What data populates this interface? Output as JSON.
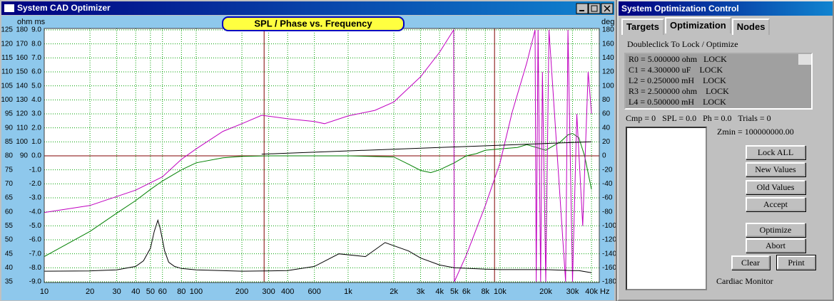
{
  "window": {
    "title": "System CAD Optimizer"
  },
  "chart_data": {
    "type": "line",
    "title": "SPL / Phase vs. Frequency",
    "xscale": "log",
    "xlim": [
      10,
      45000
    ],
    "x_unit": "Hz",
    "xticks": [
      10,
      20,
      30,
      40,
      50,
      60,
      80,
      100,
      200,
      300,
      400,
      600,
      {
        "value": 1000,
        "label": "1k"
      },
      {
        "value": 2000,
        "label": "2k"
      },
      {
        "value": 3000,
        "label": "3k"
      },
      {
        "value": 4000,
        "label": "4k"
      },
      {
        "value": 5000,
        "label": "5k"
      },
      {
        "value": 6000,
        "label": "6k"
      },
      {
        "value": 8000,
        "label": "8k"
      },
      {
        "value": 10000,
        "label": "10k"
      },
      {
        "value": 20000,
        "label": "20k"
      },
      {
        "value": 30000,
        "label": "30k"
      },
      {
        "value": 40000,
        "label": "40k"
      }
    ],
    "y_units": "ohm ms",
    "ylim": [
      35,
      125
    ],
    "yticks": [
      125,
      120,
      115,
      110,
      105,
      100,
      95,
      90,
      85,
      80,
      75,
      70,
      65,
      60,
      55,
      50,
      45,
      40,
      35
    ],
    "ohm_lim": [
      0,
      180
    ],
    "ohm_ticks": [
      180,
      170,
      160,
      150,
      140,
      130,
      120,
      110,
      100,
      90
    ],
    "ms_lim": [
      -9,
      9
    ],
    "ms_ticks": [
      {
        "value": 9,
        "label": "9.0"
      },
      {
        "value": 8,
        "label": "8.0"
      },
      {
        "value": 7,
        "label": "7.0"
      },
      {
        "value": 6,
        "label": "6.0"
      },
      {
        "value": 5,
        "label": "5.0"
      },
      {
        "value": 4,
        "label": "4.0"
      },
      {
        "value": 3,
        "label": "3.0"
      },
      {
        "value": 2,
        "label": "2.0"
      },
      {
        "value": 1,
        "label": "1.0"
      },
      {
        "value": 0,
        "label": "0.0"
      },
      {
        "value": -1,
        "label": "-1.0"
      },
      {
        "value": -2,
        "label": "-2.0"
      },
      {
        "value": -3,
        "label": "-3.0"
      },
      {
        "value": -4,
        "label": "-4.0"
      },
      {
        "value": -5,
        "label": "-5.0"
      },
      {
        "value": -6,
        "label": "-6.0"
      },
      {
        "value": -7,
        "label": "-7.0"
      },
      {
        "value": -8,
        "label": "-8.0"
      },
      {
        "value": -9,
        "label": "-9.0"
      }
    ],
    "y2_label": "deg",
    "y2lim": [
      -180,
      180
    ],
    "y2ticks": [
      180,
      160,
      140,
      120,
      100,
      80,
      60,
      40,
      20,
      0,
      -20,
      -40,
      -60,
      -80,
      -100,
      -120,
      -140,
      -160,
      -180
    ],
    "grid": true,
    "grid_color": "#00a000",
    "cursor_x": [
      280,
      9200
    ],
    "reference_y": 80,
    "cursor_color": "#800000",
    "series": [
      {
        "color": "#008000",
        "axis": "y",
        "x": [
          10,
          20,
          30,
          40,
          50,
          60,
          80,
          100,
          150,
          200,
          300,
          500,
          1000,
          2000,
          2500,
          3000,
          3500,
          4000,
          5000,
          6000,
          7000,
          8000,
          10000,
          13000,
          15000,
          20000,
          25000,
          28000,
          30000,
          33000,
          36000,
          40000
        ],
        "values": [
          44,
          53,
          59.5,
          64,
          68,
          71,
          75,
          77.5,
          79.3,
          79.8,
          80,
          80,
          80,
          79.6,
          77,
          74.8,
          74,
          75,
          77.5,
          80,
          80.8,
          82,
          82.5,
          83,
          84,
          82,
          85,
          87.5,
          88,
          86.5,
          80,
          68
        ]
      },
      {
        "color": "#c000c0",
        "axis": "y2",
        "x": [
          10,
          20,
          40,
          60,
          80,
          100,
          150,
          200,
          270,
          400,
          600,
          700,
          1000,
          1500,
          2000,
          3000,
          4000,
          4950,
          5000,
          6000,
          8000,
          10000,
          12000,
          15000,
          17000,
          17300,
          17800,
          18500,
          19000,
          20000,
          21000,
          27000,
          28000,
          30000,
          32000,
          35000,
          38000,
          40000
        ],
        "values": [
          -81,
          -71,
          -49,
          -30,
          -5,
          10,
          35,
          46,
          58,
          53,
          49,
          46,
          57,
          65,
          77,
          113,
          148,
          180,
          -180,
          -142,
          -71,
          -10,
          62,
          133,
          180,
          -180,
          180,
          -180,
          120,
          -180,
          180,
          -180,
          180,
          -180,
          60,
          -100,
          120,
          60
        ]
      },
      {
        "color": "#000000",
        "axis": "ohm",
        "x": [
          10,
          20,
          30,
          40,
          45,
          50,
          53,
          56,
          58,
          62,
          66,
          72,
          80,
          100,
          200,
          400,
          600,
          870,
          1300,
          1750,
          2500,
          3000,
          4000,
          5000,
          8000,
          10000,
          20000,
          30000,
          33000,
          40000
        ],
        "values": [
          7.6,
          7.8,
          8.5,
          11,
          15,
          24,
          36,
          44,
          38,
          22,
          14,
          11,
          9.5,
          8.5,
          7.6,
          8,
          11,
          20,
          18,
          28,
          22,
          17,
          12,
          10,
          9,
          8.7,
          8.7,
          8,
          8,
          6.5
        ]
      },
      {
        "color": "#000000",
        "axis": "y",
        "x": [
          270,
          40000
        ],
        "values": [
          80.6,
          85
        ]
      }
    ]
  },
  "control": {
    "title": "System Optimization Control",
    "tabs": [
      "Targets",
      "Optimization",
      "Nodes"
    ],
    "instruction": "Doubleclick To Lock / Optimize",
    "items": [
      "R0 = 5.000000 ohm   LOCK",
      "C1 = 4.300000 uF    LOCK",
      "L2 = 0.250000 mH    LOCK",
      "R3 = 2.500000 ohm    LOCK",
      "L4 = 0.500000 mH    LOCK"
    ],
    "status": "Cmp = 0   SPL = 0.0   Ph = 0.0   Trials = 0",
    "zmin": "Zmin = 100000000.00",
    "buttons": [
      "Lock ALL",
      "New Values",
      "Old Values",
      "Accept",
      "Optimize",
      "Abort",
      "Clear",
      "Print"
    ],
    "monitor": "Cardiac Monitor"
  }
}
